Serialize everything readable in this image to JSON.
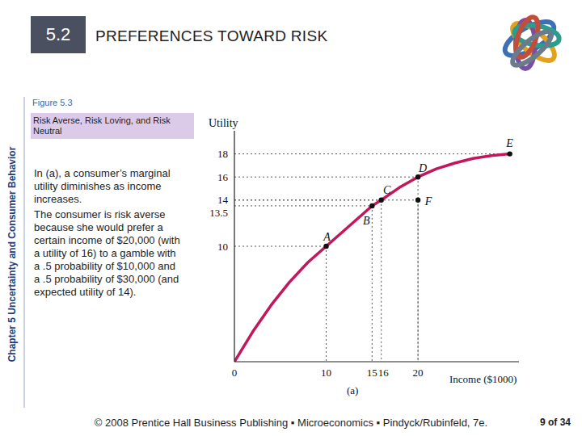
{
  "header": {
    "number": "5.2",
    "title": "PREFERENCES TOWARD RISK"
  },
  "side_label": "Chapter 5 Uncertainty and Consumer Behavior",
  "figure": {
    "label": "Figure 5.3",
    "caption": "Risk Averse, Risk Loving, and Risk Neutral"
  },
  "paragraphs": [
    "In (a), a consumer’s marginal utility diminishes as income increases.",
    "The consumer is risk averse because she would prefer a certain income of $20,000 (with a utility of 16) to a gamble with a .5 probability of $10,000 and a .5 probability of $30,000 (and expected utility of 14)."
  ],
  "chart_data": {
    "type": "line",
    "y_label": "Utility",
    "x_label": "Income ($1000)",
    "panel_label": "(a)",
    "x": [
      0,
      2,
      4,
      6,
      8,
      10,
      12,
      14,
      15,
      16,
      18,
      20,
      22,
      24,
      26,
      28,
      30
    ],
    "series": [
      {
        "color": "#c2185b",
        "values": [
          0,
          2.6,
          4.9,
          6.9,
          8.6,
          10,
          11.4,
          12.8,
          13.5,
          14,
          15.1,
          16,
          16.7,
          17.2,
          17.6,
          17.85,
          18
        ]
      }
    ],
    "points": [
      {
        "label": "A",
        "x": 10,
        "y": 10
      },
      {
        "label": "B",
        "x": 15,
        "y": 13.5
      },
      {
        "label": "C",
        "x": 16,
        "y": 14
      },
      {
        "label": "D",
        "x": 20,
        "y": 16
      },
      {
        "label": "E",
        "x": 30,
        "y": 18
      },
      {
        "label": "F",
        "x": 20,
        "y": 14
      }
    ],
    "xlim": [
      0,
      31
    ],
    "ylim": [
      0,
      20
    ],
    "xticks": [
      0,
      10,
      15,
      16,
      20
    ],
    "yticks": [
      10,
      13.5,
      14,
      16,
      18
    ],
    "grid": false,
    "marker": "circle"
  },
  "footer": {
    "text": "© 2008 Prentice Hall Business Publishing ▪ Microeconomics ▪ Pindyck/Rubinfeld, 7e.",
    "page": "9 of 34"
  }
}
